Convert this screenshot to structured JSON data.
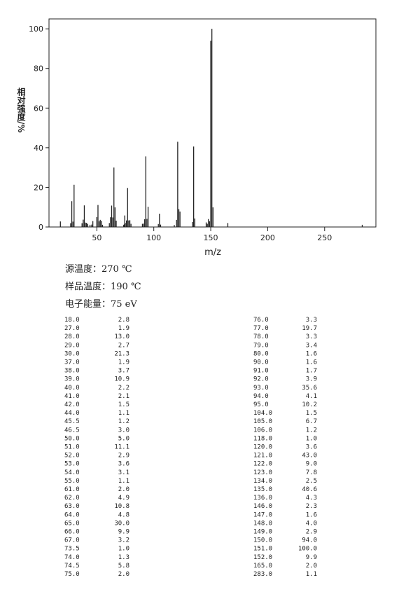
{
  "chart_data": {
    "type": "bar",
    "xlabel": "m/z",
    "ylabel": "相对强度/%",
    "x": [
      18,
      27,
      28,
      29,
      30,
      37,
      38,
      39,
      40,
      41,
      42,
      44,
      45.5,
      46.5,
      50,
      51,
      52,
      53,
      54,
      55,
      61,
      62,
      63,
      64,
      65,
      66,
      67,
      73.5,
      74,
      74.5,
      75,
      76,
      77,
      78,
      79,
      80,
      90,
      91,
      92,
      93,
      94,
      95,
      104,
      105,
      106,
      118,
      120,
      121,
      122,
      123,
      134,
      135,
      136,
      146,
      147,
      148,
      149,
      150,
      151,
      152,
      165,
      283
    ],
    "x_labels": [
      "18.0",
      "27.0",
      "28.0",
      "29.0",
      "30.0",
      "37.0",
      "38.0",
      "39.0",
      "40.0",
      "41.0",
      "42.0",
      "44.0",
      "45.5",
      "46.5",
      "50.0",
      "51.0",
      "52.0",
      "53.0",
      "54.0",
      "55.0",
      "61.0",
      "62.0",
      "63.0",
      "64.0",
      "65.0",
      "66.0",
      "67.0",
      "73.5",
      "74.0",
      "74.5",
      "75.0",
      "76.0",
      "77.0",
      "78.0",
      "79.0",
      "80.0",
      "90.0",
      "91.0",
      "92.0",
      "93.0",
      "94.0",
      "95.0",
      "104.0",
      "105.0",
      "106.0",
      "118.0",
      "120.0",
      "121.0",
      "122.0",
      "123.0",
      "134.0",
      "135.0",
      "136.0",
      "146.0",
      "147.0",
      "148.0",
      "149.0",
      "150.0",
      "151.0",
      "152.0",
      "165.0",
      "283.0"
    ],
    "values": [
      2.8,
      1.9,
      13.0,
      2.7,
      21.3,
      1.9,
      3.7,
      10.9,
      2.2,
      2.1,
      1.5,
      1.1,
      1.2,
      3.0,
      5.0,
      11.1,
      2.9,
      3.6,
      3.1,
      1.1,
      2.0,
      4.9,
      10.8,
      4.8,
      30.0,
      9.9,
      3.2,
      1.0,
      1.3,
      5.8,
      2.0,
      3.3,
      19.7,
      3.3,
      3.4,
      1.6,
      1.6,
      1.7,
      3.9,
      35.6,
      4.1,
      10.2,
      1.5,
      6.7,
      1.2,
      1.0,
      3.6,
      43.0,
      9.0,
      7.8,
      2.5,
      40.6,
      4.3,
      2.3,
      1.6,
      4.0,
      2.9,
      94.0,
      100.0,
      9.9,
      2.0,
      1.1
    ],
    "value_labels": [
      "2.8",
      "1.9",
      "13.0",
      "2.7",
      "21.3",
      "1.9",
      "3.7",
      "10.9",
      "2.2",
      "2.1",
      "1.5",
      "1.1",
      "1.2",
      "3.0",
      "5.0",
      "11.1",
      "2.9",
      "3.6",
      "3.1",
      "1.1",
      "2.0",
      "4.9",
      "10.8",
      "4.8",
      "30.0",
      "9.9",
      "3.2",
      "1.0",
      "1.3",
      "5.8",
      "2.0",
      "3.3",
      "19.7",
      "3.3",
      "3.4",
      "1.6",
      "1.6",
      "1.7",
      "3.9",
      "35.6",
      "4.1",
      "10.2",
      "1.5",
      "6.7",
      "1.2",
      "1.0",
      "3.6",
      "43.0",
      "9.0",
      "7.8",
      "2.5",
      "40.6",
      "4.3",
      "2.3",
      "1.6",
      "4.0",
      "2.9",
      "94.0",
      "100.0",
      "9.9",
      "2.0",
      "1.1"
    ],
    "color": "#222222",
    "xlim": [
      8,
      295
    ],
    "xticks": [
      50,
      100,
      150,
      200,
      250
    ],
    "ylim": [
      0,
      105
    ],
    "yticks": [
      0,
      20,
      40,
      60,
      80,
      100
    ]
  },
  "conditions": [
    "源温度：270 ℃",
    "样品温度：190 ℃",
    "电子能量：75 eV"
  ]
}
